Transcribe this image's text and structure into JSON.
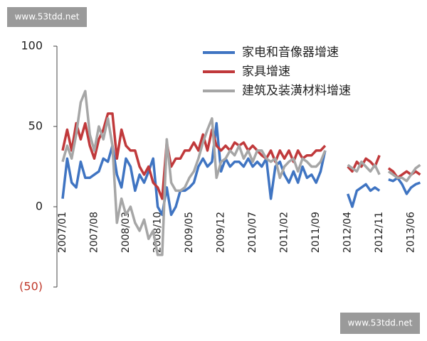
{
  "watermarks": [
    "www.53tdd.net",
    "www.53tdd.net"
  ],
  "chart_data": {
    "type": "line",
    "categories": [
      "2007/01",
      null,
      null,
      null,
      null,
      null,
      null,
      "2007/08",
      null,
      null,
      null,
      null,
      null,
      null,
      "2008/03",
      null,
      null,
      null,
      null,
      null,
      null,
      "2008/10",
      null,
      null,
      null,
      null,
      null,
      null,
      "2009/05",
      null,
      null,
      null,
      null,
      null,
      null,
      "2009/12",
      null,
      null,
      null,
      null,
      null,
      null,
      "2010/07",
      null,
      null,
      null,
      null,
      null,
      null,
      "2011/02",
      null,
      null,
      null,
      null,
      null,
      null,
      "2011/09",
      null,
      null,
      null,
      null,
      null,
      null,
      "2012/04",
      null,
      null,
      null,
      null,
      null,
      null,
      "2012/11",
      null,
      null,
      null,
      null,
      null,
      null,
      "2013/06",
      null,
      null
    ],
    "ylim": [
      -50,
      100
    ],
    "yticks": [
      100,
      50,
      0,
      {
        "value": -50,
        "label": "(50)"
      }
    ],
    "legend": "top-right",
    "series": [
      {
        "name": "家电和音像器增速",
        "color": "#3f74c2",
        "values": [
          5,
          30,
          15,
          12,
          28,
          18,
          18,
          20,
          22,
          30,
          28,
          38,
          20,
          12,
          30,
          25,
          10,
          20,
          15,
          22,
          30,
          0,
          -5,
          12,
          -5,
          0,
          10,
          10,
          12,
          15,
          25,
          30,
          25,
          28,
          52,
          22,
          30,
          25,
          28,
          28,
          25,
          30,
          25,
          28,
          25,
          30,
          5,
          25,
          28,
          20,
          15,
          22,
          15,
          25,
          18,
          20,
          15,
          22,
          35,
          null,
          null,
          null,
          null,
          8,
          0,
          10,
          12,
          14,
          10,
          12,
          10,
          null,
          17,
          16,
          18,
          14,
          8,
          12,
          14,
          15
        ]
      },
      {
        "name": "家具增速",
        "color": "#c0393b",
        "values": [
          35,
          48,
          35,
          52,
          42,
          52,
          38,
          30,
          42,
          48,
          58,
          58,
          30,
          48,
          38,
          35,
          35,
          25,
          20,
          25,
          15,
          12,
          5,
          40,
          25,
          30,
          30,
          35,
          35,
          40,
          35,
          45,
          35,
          48,
          38,
          35,
          38,
          35,
          40,
          38,
          40,
          35,
          38,
          35,
          32,
          30,
          35,
          28,
          35,
          30,
          35,
          28,
          35,
          30,
          32,
          32,
          35,
          35,
          38,
          null,
          null,
          null,
          null,
          25,
          22,
          28,
          25,
          30,
          28,
          25,
          32,
          null,
          24,
          22,
          18,
          20,
          22,
          20,
          22,
          20
        ]
      },
      {
        "name": "建筑及装潢材料增速",
        "color": "#a6a6a6",
        "values": [
          28,
          38,
          30,
          45,
          65,
          72,
          45,
          35,
          50,
          42,
          55,
          38,
          -10,
          5,
          -5,
          0,
          -10,
          -15,
          -8,
          -20,
          -15,
          -30,
          -30,
          42,
          15,
          10,
          10,
          12,
          18,
          22,
          30,
          40,
          48,
          55,
          18,
          28,
          30,
          35,
          32,
          38,
          30,
          35,
          28,
          35,
          35,
          30,
          28,
          30,
          18,
          25,
          28,
          30,
          22,
          30,
          28,
          25,
          25,
          28,
          35,
          null,
          null,
          null,
          null,
          26,
          24,
          22,
          28,
          25,
          22,
          26,
          20,
          null,
          22,
          20,
          18,
          18,
          16,
          20,
          24,
          26
        ]
      }
    ]
  }
}
